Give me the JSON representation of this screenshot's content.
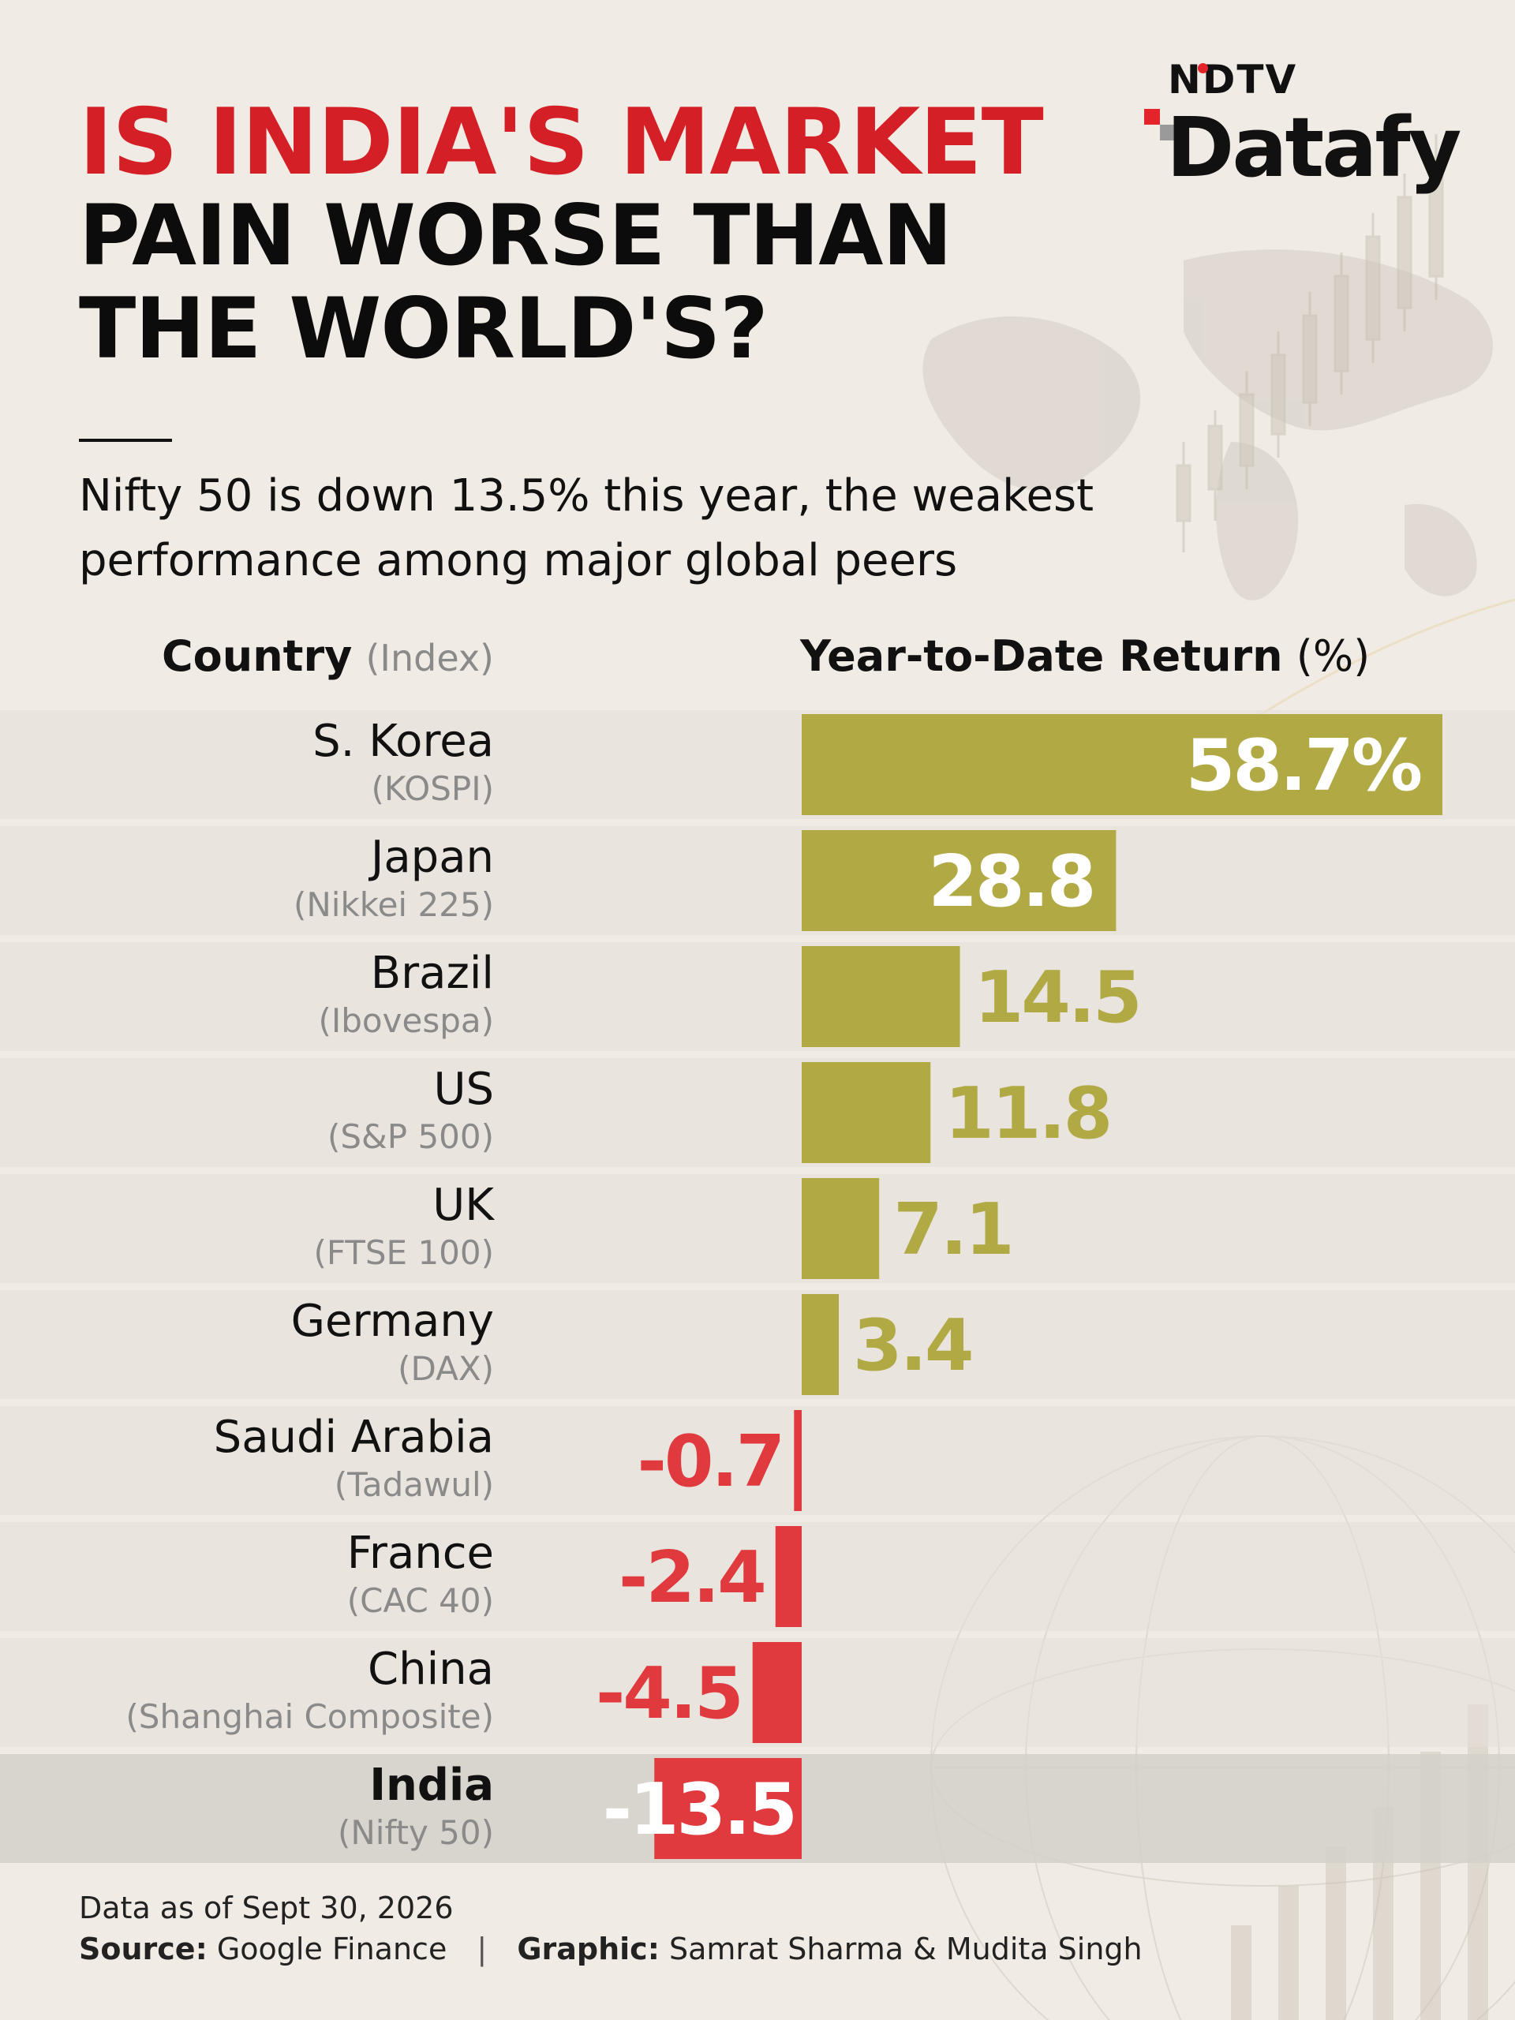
{
  "header": {
    "title_line1": "IS INDIA'S MARKET",
    "title_line2": "PAIN WORSE THAN",
    "title_line3": "THE WORLD'S?",
    "subtitle": "Nifty 50 is down 13.5% this year, the weakest performance among major global peers"
  },
  "logo": {
    "top": "NDTV",
    "bottom": "Datafy"
  },
  "table_headers": {
    "country": "Country",
    "index": "(Index)",
    "return": "Year-to-Date Return",
    "unit": "(%)"
  },
  "colors": {
    "positive": "#b1a944",
    "negative": "#e0393e",
    "title_accent": "#d51f26",
    "row_band": "#e4e0da",
    "highlight_band": "#d4d0ca"
  },
  "chart_data": {
    "type": "bar",
    "orientation": "horizontal",
    "categories": [
      "S. Korea",
      "Japan",
      "Brazil",
      "US",
      "UK",
      "Germany",
      "Saudi Arabia",
      "France",
      "China",
      "India"
    ],
    "indices": [
      "(KOSPI)",
      "(Nikkei 225)",
      "(Ibovespa)",
      "(S&P 500)",
      "(FTSE 100)",
      "(DAX)",
      "(Tadawul)",
      "(CAC 40)",
      "(Shanghai Composite)",
      "(Nifty 50)"
    ],
    "values": [
      58.7,
      28.8,
      14.5,
      11.8,
      7.1,
      3.4,
      -0.7,
      -2.4,
      -4.5,
      -13.5
    ],
    "labels": [
      "58.7%",
      "28.8",
      "14.5",
      "11.8",
      "7.1",
      "3.4",
      "-0.7",
      "-2.4",
      "-4.5",
      "-13.5"
    ],
    "highlight": "India",
    "xlabel": "Year-to-Date Return (%)"
  },
  "footer": {
    "date_note": "Data as of Sept 30, 2026",
    "source_label": "Source:",
    "source": "Google Finance",
    "separator": "|",
    "graphic_label": "Graphic:",
    "graphic": "Samrat Sharma & Mudita Singh"
  }
}
